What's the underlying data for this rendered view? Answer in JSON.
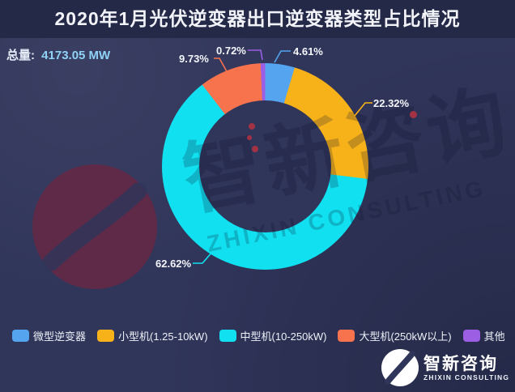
{
  "header": {
    "title": "2020年1月光伏逆变器出口逆变器类型占比情况"
  },
  "total": {
    "label": "总量:",
    "value": "4173.05 MW"
  },
  "chart_data": {
    "type": "pie",
    "subtype": "donut",
    "title": "2020年1月光伏逆变器出口逆变器类型占比情况",
    "total": "4173.05 MW",
    "unit": "%",
    "categories": [
      "微型逆变器",
      "小型机(1.25-10kW)",
      "中型机(10-250kW)",
      "大型机(250kW以上)",
      "其他"
    ],
    "values": [
      4.61,
      22.32,
      62.62,
      9.73,
      0.72
    ],
    "labels_text": [
      "4.61%",
      "22.32%",
      "62.62%",
      "9.73%",
      "0.72%"
    ],
    "colors": [
      "#54a4ef",
      "#f7b119",
      "#10e0f0",
      "#f7734e",
      "#9c5fe4"
    ],
    "start_angle": "12 o'clock, clockwise",
    "legend_position": "bottom"
  },
  "watermark": {
    "cn": "智新咨询",
    "en": "ZHIXIN CONSULTING"
  },
  "logo": {
    "cn": "智新咨询",
    "en": "ZHIXIN CONSULTING"
  },
  "theme": {
    "background": "#30355a",
    "header_bg": "#242947",
    "title_color": "#f2f3f8",
    "total_value_color": "#8fd2f6",
    "decor_swoosh_color": "#5e2a47",
    "watermark_accent_red": "#a23244"
  }
}
